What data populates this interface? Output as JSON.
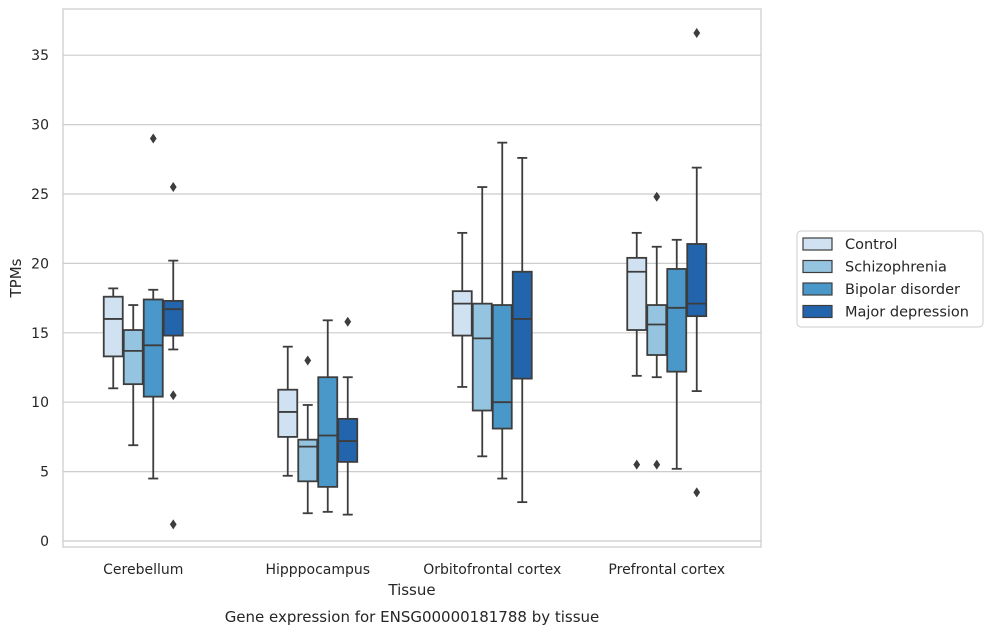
{
  "caption": "Gene expression for ENSG00000181788 by tissue",
  "chart_data": {
    "type": "box",
    "xlabel": "Tissue",
    "ylabel": "TPMs",
    "ylim": [
      -0.5,
      38
    ],
    "yticks": [
      0,
      5,
      10,
      15,
      20,
      25,
      30,
      35
    ],
    "grid": true,
    "legend_position": "right",
    "categories": [
      "Cerebellum",
      "Hipppocampus",
      "Orbitofrontal cortex",
      "Prefrontal cortex"
    ],
    "series": [
      {
        "name": "Control",
        "color": "#d0e1f2",
        "boxes": [
          {
            "whisker_low": 11.0,
            "q1": 13.3,
            "median": 16.0,
            "q3": 17.6,
            "whisker_high": 18.2,
            "outliers": []
          },
          {
            "whisker_low": 4.7,
            "q1": 7.5,
            "median": 9.3,
            "q3": 10.9,
            "whisker_high": 14.0,
            "outliers": []
          },
          {
            "whisker_low": 11.1,
            "q1": 14.8,
            "median": 17.1,
            "q3": 18.0,
            "whisker_high": 22.2,
            "outliers": []
          },
          {
            "whisker_low": 11.9,
            "q1": 15.2,
            "median": 19.4,
            "q3": 20.4,
            "whisker_high": 22.2,
            "outliers": [
              5.5
            ]
          }
        ]
      },
      {
        "name": "Schizophrenia",
        "color": "#94c4df",
        "boxes": [
          {
            "whisker_low": 6.9,
            "q1": 11.3,
            "median": 13.7,
            "q3": 15.2,
            "whisker_high": 17.0,
            "outliers": []
          },
          {
            "whisker_low": 2.0,
            "q1": 4.3,
            "median": 6.8,
            "q3": 7.3,
            "whisker_high": 9.8,
            "outliers": [
              13.0
            ]
          },
          {
            "whisker_low": 6.1,
            "q1": 9.4,
            "median": 14.6,
            "q3": 17.1,
            "whisker_high": 25.5,
            "outliers": []
          },
          {
            "whisker_low": 11.8,
            "q1": 13.4,
            "median": 15.6,
            "q3": 17.0,
            "whisker_high": 21.2,
            "outliers": [
              24.8,
              5.5
            ]
          }
        ]
      },
      {
        "name": "Bipolar disorder",
        "color": "#4a98c9",
        "boxes": [
          {
            "whisker_low": 4.5,
            "q1": 10.4,
            "median": 14.1,
            "q3": 17.4,
            "whisker_high": 18.1,
            "outliers": [
              29.0
            ]
          },
          {
            "whisker_low": 2.1,
            "q1": 3.9,
            "median": 7.6,
            "q3": 11.8,
            "whisker_high": 15.9,
            "outliers": []
          },
          {
            "whisker_low": 4.5,
            "q1": 8.1,
            "median": 10.0,
            "q3": 17.0,
            "whisker_high": 28.7,
            "outliers": []
          },
          {
            "whisker_low": 5.2,
            "q1": 12.2,
            "median": 16.8,
            "q3": 19.6,
            "whisker_high": 21.7,
            "outliers": []
          }
        ]
      },
      {
        "name": "Major depression",
        "color": "#2265ad",
        "boxes": [
          {
            "whisker_low": 13.8,
            "q1": 14.8,
            "median": 16.7,
            "q3": 17.3,
            "whisker_high": 20.2,
            "outliers": [
              25.5,
              10.5,
              1.2
            ]
          },
          {
            "whisker_low": 1.9,
            "q1": 5.7,
            "median": 7.2,
            "q3": 8.8,
            "whisker_high": 11.8,
            "outliers": [
              15.8
            ]
          },
          {
            "whisker_low": 2.8,
            "q1": 11.7,
            "median": 16.0,
            "q3": 19.4,
            "whisker_high": 27.6,
            "outliers": []
          },
          {
            "whisker_low": 10.8,
            "q1": 16.2,
            "median": 17.1,
            "q3": 21.4,
            "whisker_high": 26.9,
            "outliers": [
              36.6,
              3.5
            ]
          }
        ]
      }
    ]
  }
}
